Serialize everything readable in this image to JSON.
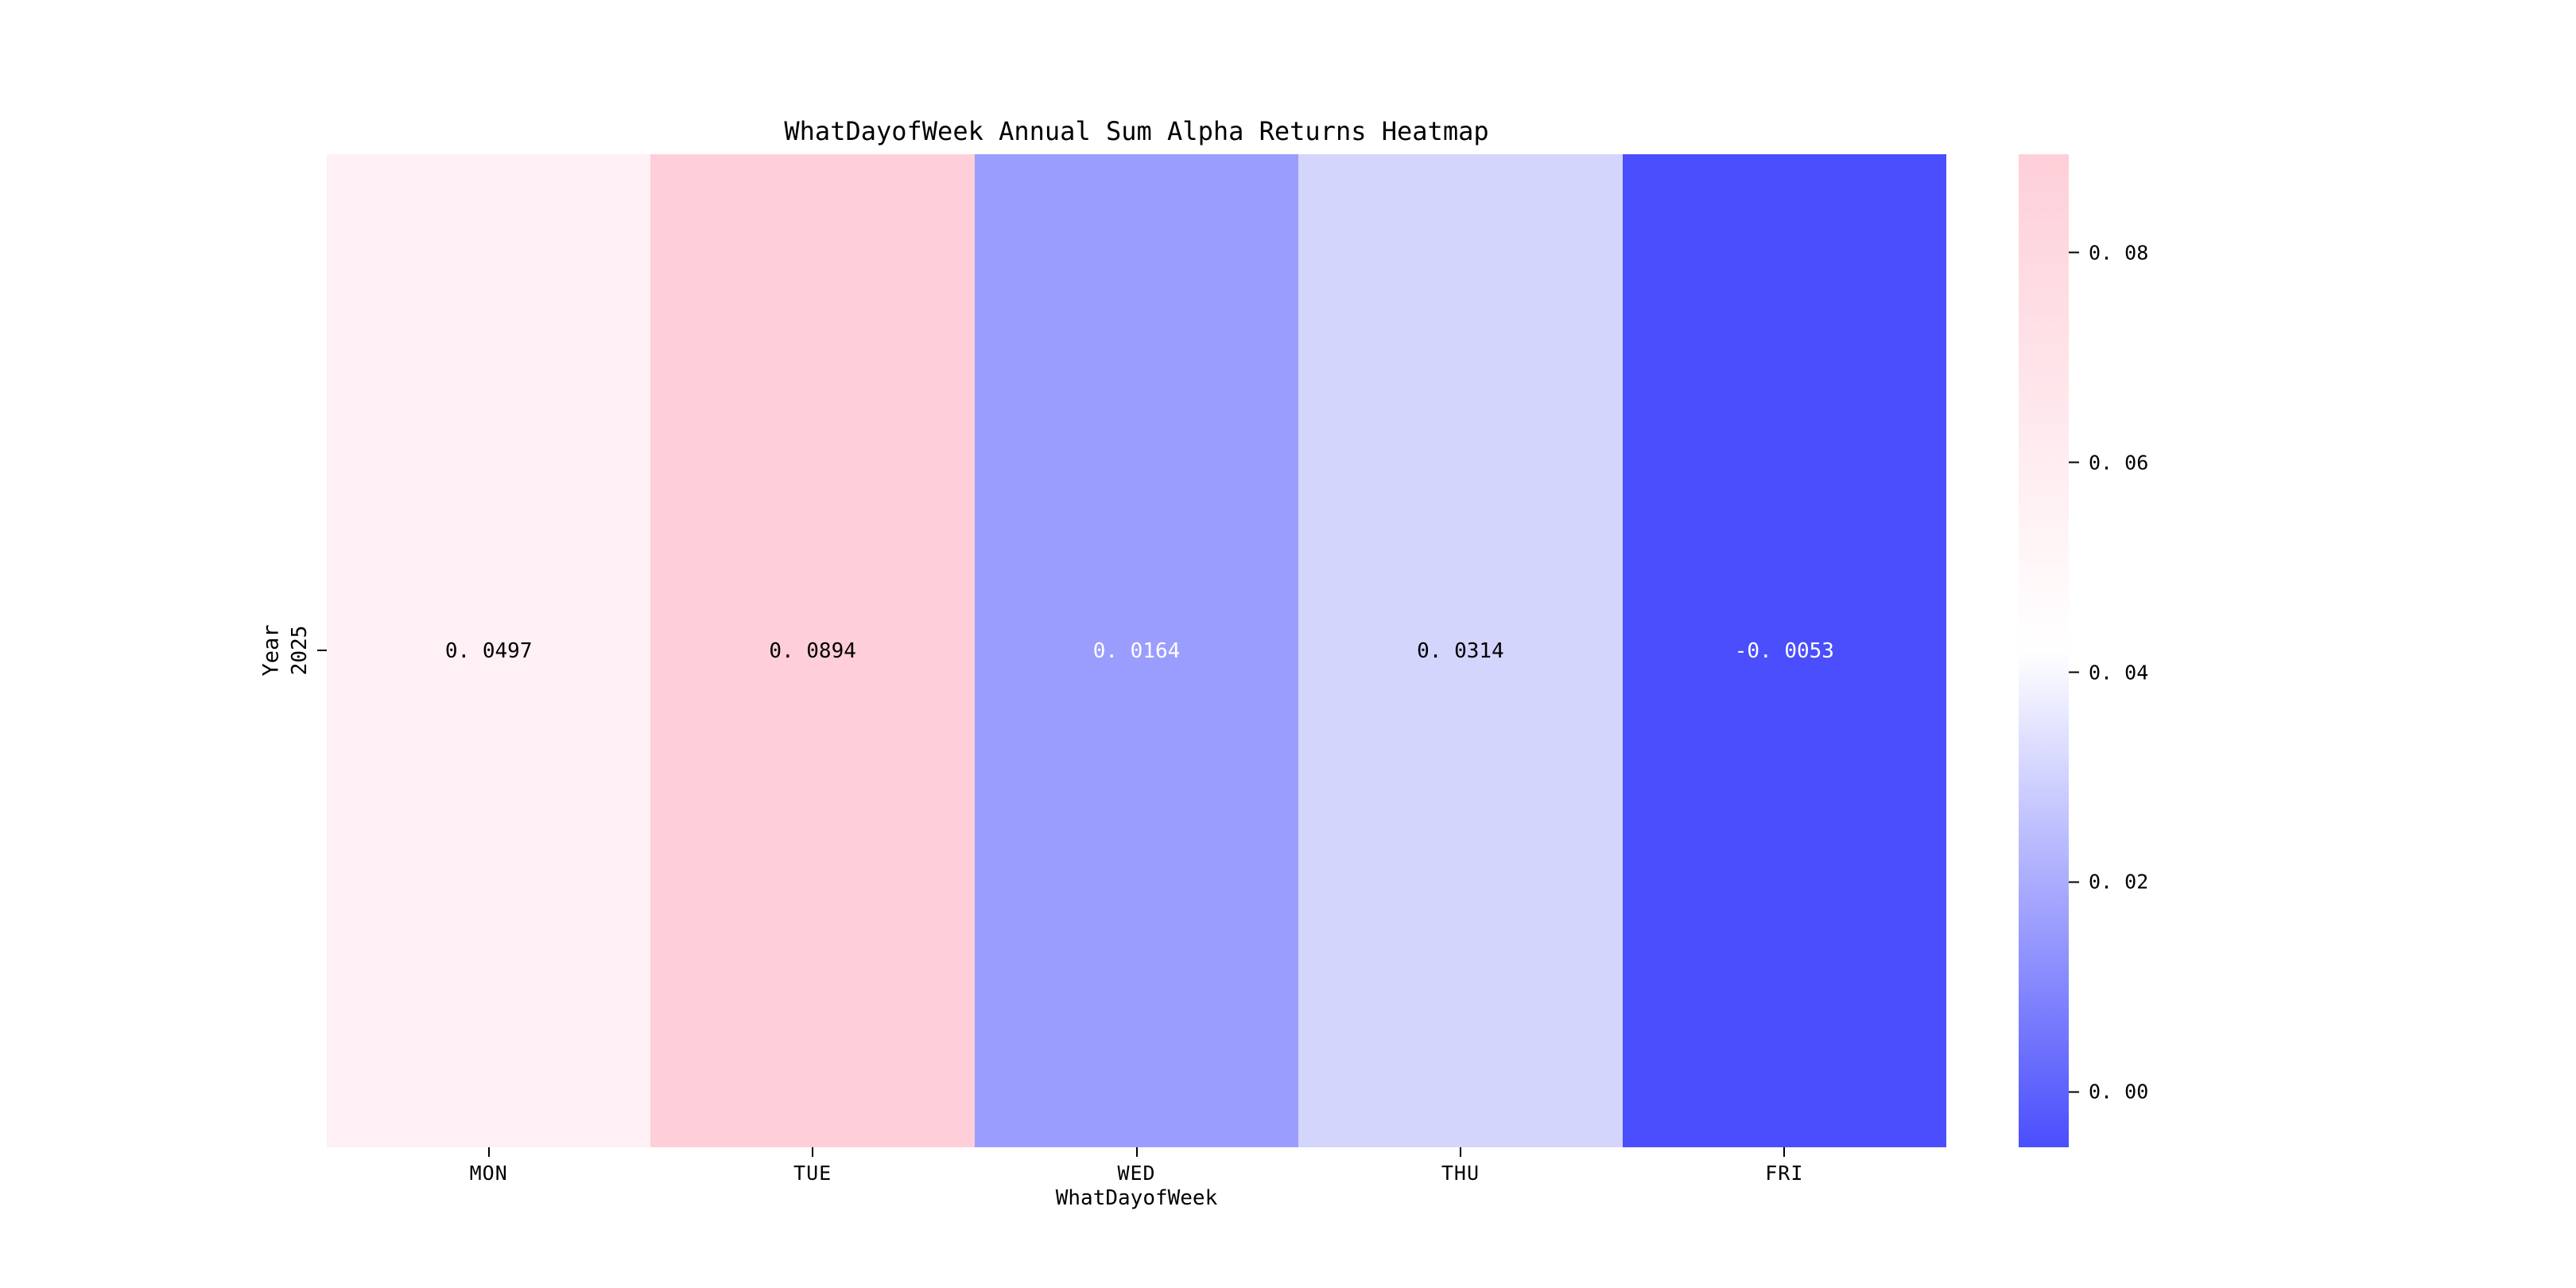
{
  "title": "WhatDayofWeek Annual Sum Alpha Returns Heatmap",
  "axes": {
    "xlabel": "WhatDayofWeek",
    "ylabel": "Year",
    "ytick_label": "2025"
  },
  "xticks": [
    "MON",
    "TUE",
    "WED",
    "THU",
    "FRI"
  ],
  "cells": [
    {
      "day": "MON",
      "label": "0. 0497",
      "value": 0.0497,
      "bg": "#fef0f5",
      "fg": "#000000"
    },
    {
      "day": "TUE",
      "label": "0. 0894",
      "value": 0.0894,
      "bg": "#fecfd8",
      "fg": "#000000"
    },
    {
      "day": "WED",
      "label": "0. 0164",
      "value": 0.0164,
      "bg": "#9b9dfe",
      "fg": "#ffffff"
    },
    {
      "day": "THU",
      "label": "0. 0314",
      "value": 0.0314,
      "bg": "#d4d5fd",
      "fg": "#000000"
    },
    {
      "day": "FRI",
      "label": "-0. 0053",
      "value": -0.0053,
      "bg": "#4a4efc",
      "fg": "#ffffff"
    }
  ],
  "colorbar": {
    "low_color": "#4a4efc",
    "mid_color": "#ffffff",
    "high_color": "#fecfd8",
    "vmin": -0.0053,
    "vmax": 0.0894,
    "ticks": [
      {
        "label": "0. 08",
        "value": 0.08
      },
      {
        "label": "0. 06",
        "value": 0.06
      },
      {
        "label": "0. 04",
        "value": 0.04
      },
      {
        "label": "0. 02",
        "value": 0.02
      },
      {
        "label": "0. 00",
        "value": 0.0
      }
    ]
  },
  "chart_data": {
    "type": "heatmap",
    "title": "WhatDayofWeek Annual Sum Alpha Returns Heatmap",
    "xlabel": "WhatDayofWeek",
    "ylabel": "Year",
    "x_categories": [
      "MON",
      "TUE",
      "WED",
      "THU",
      "FRI"
    ],
    "y_categories": [
      "2025"
    ],
    "values": [
      [
        0.0497,
        0.0894,
        0.0164,
        0.0314,
        -0.0053
      ]
    ],
    "vmin": -0.0053,
    "vmax": 0.0894,
    "colorbar_ticks": [
      0.0,
      0.02,
      0.04,
      0.06,
      0.08
    ],
    "colormap": "diverging blue-white-pink (low=#4a4efc, mid=#ffffff, high=#fecfd8)",
    "annotated": true,
    "grid": false,
    "legend_position": "right-colorbar"
  }
}
